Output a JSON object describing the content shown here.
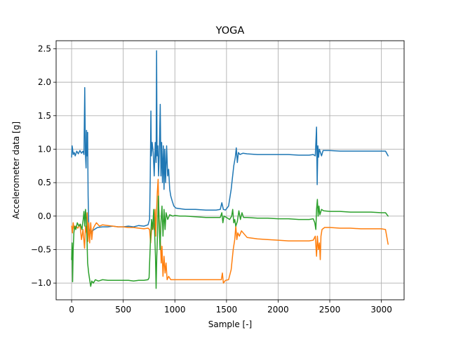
{
  "chart_data": {
    "type": "line",
    "title": "YOGA",
    "xlabel": "Sample [-]",
    "ylabel": "Accelerometer data [g]",
    "xlim": [
      -150,
      3220
    ],
    "ylim": [
      -1.25,
      2.62
    ],
    "xticks": [
      0,
      500,
      1000,
      1500,
      2000,
      2500,
      3000
    ],
    "yticks": [
      -1.0,
      -0.5,
      0.0,
      0.5,
      1.0,
      1.5,
      2.0,
      2.5
    ],
    "grid": true,
    "series": [
      {
        "color": "#1f77b4",
        "points": [
          [
            0,
            0.88
          ],
          [
            5,
            1.05
          ],
          [
            10,
            1.0
          ],
          [
            15,
            0.92
          ],
          [
            25,
            0.95
          ],
          [
            35,
            0.9
          ],
          [
            50,
            0.97
          ],
          [
            65,
            0.93
          ],
          [
            80,
            0.98
          ],
          [
            95,
            0.94
          ],
          [
            110,
            0.97
          ],
          [
            120,
            0.92
          ],
          [
            127,
            1.92
          ],
          [
            133,
            0.95
          ],
          [
            140,
            0.72
          ],
          [
            145,
            1.28
          ],
          [
            150,
            0.9
          ],
          [
            155,
            1.25
          ],
          [
            160,
            0.3
          ],
          [
            165,
            -0.1
          ],
          [
            170,
            -0.2
          ],
          [
            185,
            -0.25
          ],
          [
            200,
            -0.22
          ],
          [
            250,
            -0.17
          ],
          [
            300,
            -0.16
          ],
          [
            350,
            -0.16
          ],
          [
            400,
            -0.15
          ],
          [
            450,
            -0.16
          ],
          [
            500,
            -0.16
          ],
          [
            550,
            -0.15
          ],
          [
            600,
            -0.16
          ],
          [
            650,
            -0.14
          ],
          [
            700,
            -0.15
          ],
          [
            740,
            -0.13
          ],
          [
            755,
            -0.05
          ],
          [
            762,
            0.6
          ],
          [
            768,
            1.57
          ],
          [
            772,
            0.9
          ],
          [
            780,
            1.1
          ],
          [
            790,
            0.95
          ],
          [
            800,
            0.6
          ],
          [
            810,
            1.1
          ],
          [
            818,
            0.8
          ],
          [
            823,
            2.47
          ],
          [
            828,
            0.9
          ],
          [
            835,
            1.05
          ],
          [
            842,
            0.6
          ],
          [
            850,
            1.0
          ],
          [
            858,
            1.67
          ],
          [
            865,
            0.6
          ],
          [
            872,
            1.1
          ],
          [
            880,
            0.5
          ],
          [
            888,
            1.05
          ],
          [
            895,
            0.4
          ],
          [
            902,
            1.0
          ],
          [
            910,
            0.5
          ],
          [
            920,
            1.05
          ],
          [
            930,
            0.6
          ],
          [
            940,
            0.7
          ],
          [
            950,
            0.4
          ],
          [
            960,
            0.3
          ],
          [
            975,
            0.22
          ],
          [
            990,
            0.15
          ],
          [
            1010,
            0.12
          ],
          [
            1050,
            0.11
          ],
          [
            1100,
            0.1
          ],
          [
            1200,
            0.1
          ],
          [
            1300,
            0.09
          ],
          [
            1400,
            0.09
          ],
          [
            1440,
            0.1
          ],
          [
            1455,
            0.2
          ],
          [
            1470,
            0.1
          ],
          [
            1490,
            0.09
          ],
          [
            1520,
            0.15
          ],
          [
            1545,
            0.4
          ],
          [
            1570,
            0.75
          ],
          [
            1585,
            0.88
          ],
          [
            1595,
            1.02
          ],
          [
            1605,
            0.8
          ],
          [
            1615,
            0.95
          ],
          [
            1630,
            0.92
          ],
          [
            1660,
            0.94
          ],
          [
            1700,
            0.93
          ],
          [
            1800,
            0.92
          ],
          [
            1900,
            0.92
          ],
          [
            2000,
            0.92
          ],
          [
            2100,
            0.92
          ],
          [
            2200,
            0.91
          ],
          [
            2300,
            0.91
          ],
          [
            2340,
            0.92
          ],
          [
            2360,
            0.9
          ],
          [
            2372,
            1.33
          ],
          [
            2378,
            0.47
          ],
          [
            2385,
            1.05
          ],
          [
            2392,
            0.88
          ],
          [
            2400,
            1.0
          ],
          [
            2410,
            0.95
          ],
          [
            2420,
            0.9
          ],
          [
            2435,
            0.98
          ],
          [
            2500,
            0.98
          ],
          [
            2600,
            0.97
          ],
          [
            2700,
            0.97
          ],
          [
            2800,
            0.97
          ],
          [
            2900,
            0.97
          ],
          [
            3000,
            0.97
          ],
          [
            3040,
            0.97
          ],
          [
            3065,
            0.9
          ]
        ]
      },
      {
        "color": "#ff7f0e",
        "points": [
          [
            0,
            -0.15
          ],
          [
            8,
            -0.25
          ],
          [
            15,
            -0.1
          ],
          [
            25,
            -0.2
          ],
          [
            40,
            -0.15
          ],
          [
            60,
            -0.18
          ],
          [
            80,
            -0.12
          ],
          [
            95,
            -0.35
          ],
          [
            110,
            -0.2
          ],
          [
            125,
            -0.48
          ],
          [
            135,
            -0.15
          ],
          [
            145,
            -0.25
          ],
          [
            150,
            0.05
          ],
          [
            158,
            -0.38
          ],
          [
            165,
            -0.1
          ],
          [
            175,
            -0.4
          ],
          [
            185,
            -0.1
          ],
          [
            195,
            -0.35
          ],
          [
            205,
            -0.2
          ],
          [
            220,
            -0.15
          ],
          [
            240,
            -0.1
          ],
          [
            270,
            -0.15
          ],
          [
            300,
            -0.13
          ],
          [
            350,
            -0.14
          ],
          [
            400,
            -0.15
          ],
          [
            450,
            -0.16
          ],
          [
            500,
            -0.16
          ],
          [
            550,
            -0.17
          ],
          [
            600,
            -0.17
          ],
          [
            650,
            -0.18
          ],
          [
            700,
            -0.19
          ],
          [
            740,
            -0.18
          ],
          [
            755,
            -0.2
          ],
          [
            765,
            -0.4
          ],
          [
            775,
            -0.2
          ],
          [
            790,
            -0.1
          ],
          [
            800,
            -0.2
          ],
          [
            808,
            0.1
          ],
          [
            815,
            -0.3
          ],
          [
            822,
            0.05
          ],
          [
            830,
            0.35
          ],
          [
            838,
            0.55
          ],
          [
            845,
            0.1
          ],
          [
            852,
            -0.2
          ],
          [
            860,
            -0.4
          ],
          [
            868,
            -0.7
          ],
          [
            875,
            -0.45
          ],
          [
            885,
            -0.9
          ],
          [
            895,
            -0.6
          ],
          [
            905,
            -0.85
          ],
          [
            915,
            -0.7
          ],
          [
            925,
            -0.95
          ],
          [
            940,
            -0.9
          ],
          [
            960,
            -0.95
          ],
          [
            1000,
            -0.95
          ],
          [
            1100,
            -0.95
          ],
          [
            1200,
            -0.95
          ],
          [
            1300,
            -0.95
          ],
          [
            1400,
            -0.95
          ],
          [
            1450,
            -0.95
          ],
          [
            1460,
            -0.85
          ],
          [
            1470,
            -1.0
          ],
          [
            1490,
            -0.96
          ],
          [
            1520,
            -0.95
          ],
          [
            1545,
            -0.8
          ],
          [
            1565,
            -0.5
          ],
          [
            1580,
            -0.35
          ],
          [
            1590,
            -0.15
          ],
          [
            1600,
            -0.35
          ],
          [
            1610,
            -0.25
          ],
          [
            1625,
            -0.3
          ],
          [
            1645,
            -0.22
          ],
          [
            1700,
            -0.32
          ],
          [
            1800,
            -0.34
          ],
          [
            1900,
            -0.35
          ],
          [
            2000,
            -0.36
          ],
          [
            2100,
            -0.37
          ],
          [
            2200,
            -0.37
          ],
          [
            2300,
            -0.37
          ],
          [
            2340,
            -0.36
          ],
          [
            2360,
            -0.3
          ],
          [
            2372,
            -0.6
          ],
          [
            2380,
            -0.3
          ],
          [
            2390,
            -0.5
          ],
          [
            2400,
            -0.4
          ],
          [
            2408,
            -0.65
          ],
          [
            2415,
            -0.3
          ],
          [
            2425,
            -0.2
          ],
          [
            2450,
            -0.17
          ],
          [
            2500,
            -0.17
          ],
          [
            2600,
            -0.18
          ],
          [
            2700,
            -0.18
          ],
          [
            2800,
            -0.19
          ],
          [
            2900,
            -0.19
          ],
          [
            3000,
            -0.19
          ],
          [
            3040,
            -0.2
          ],
          [
            3065,
            -0.42
          ]
        ]
      },
      {
        "color": "#2ca02c",
        "points": [
          [
            0,
            -0.65
          ],
          [
            5,
            -0.4
          ],
          [
            10,
            -0.98
          ],
          [
            15,
            -0.5
          ],
          [
            22,
            -0.25
          ],
          [
            30,
            -0.15
          ],
          [
            40,
            -0.2
          ],
          [
            55,
            -0.1
          ],
          [
            70,
            -0.15
          ],
          [
            85,
            -0.12
          ],
          [
            100,
            -0.2
          ],
          [
            112,
            -0.05
          ],
          [
            120,
            0.07
          ],
          [
            128,
            -0.15
          ],
          [
            135,
            0.1
          ],
          [
            142,
            -0.05
          ],
          [
            148,
            -0.3
          ],
          [
            155,
            -0.7
          ],
          [
            165,
            -0.85
          ],
          [
            175,
            -0.95
          ],
          [
            185,
            -1.05
          ],
          [
            195,
            -0.97
          ],
          [
            210,
            -1.0
          ],
          [
            230,
            -0.95
          ],
          [
            260,
            -0.97
          ],
          [
            300,
            -0.95
          ],
          [
            350,
            -0.96
          ],
          [
            400,
            -0.96
          ],
          [
            450,
            -0.96
          ],
          [
            500,
            -0.96
          ],
          [
            550,
            -0.96
          ],
          [
            600,
            -0.97
          ],
          [
            650,
            -0.96
          ],
          [
            700,
            -0.96
          ],
          [
            740,
            -0.95
          ],
          [
            750,
            -0.92
          ],
          [
            758,
            -0.6
          ],
          [
            765,
            -0.3
          ],
          [
            775,
            -0.05
          ],
          [
            785,
            -0.2
          ],
          [
            795,
            0.1
          ],
          [
            805,
            -0.3
          ],
          [
            812,
            -0.6
          ],
          [
            818,
            -1.08
          ],
          [
            825,
            -0.6
          ],
          [
            833,
            -0.2
          ],
          [
            840,
            0.3
          ],
          [
            848,
            -0.1
          ],
          [
            856,
            -0.5
          ],
          [
            865,
            -0.1
          ],
          [
            875,
            0.15
          ],
          [
            885,
            -0.3
          ],
          [
            895,
            0.1
          ],
          [
            905,
            -0.2
          ],
          [
            915,
            0.05
          ],
          [
            930,
            -0.05
          ],
          [
            950,
            0.02
          ],
          [
            980,
            0.0
          ],
          [
            1000,
            0.01
          ],
          [
            1050,
            0.0
          ],
          [
            1100,
            0.0
          ],
          [
            1200,
            -0.01
          ],
          [
            1300,
            -0.02
          ],
          [
            1400,
            -0.02
          ],
          [
            1440,
            -0.02
          ],
          [
            1455,
            0.05
          ],
          [
            1465,
            -0.1
          ],
          [
            1475,
            0.0
          ],
          [
            1500,
            -0.02
          ],
          [
            1530,
            -0.05
          ],
          [
            1550,
            0.0
          ],
          [
            1560,
            0.1
          ],
          [
            1570,
            -0.1
          ],
          [
            1580,
            -0.05
          ],
          [
            1590,
            -0.15
          ],
          [
            1605,
            -0.08
          ],
          [
            1620,
            0.08
          ],
          [
            1635,
            -0.05
          ],
          [
            1650,
            0.05
          ],
          [
            1665,
            -0.02
          ],
          [
            1700,
            -0.02
          ],
          [
            1800,
            -0.03
          ],
          [
            1900,
            -0.03
          ],
          [
            2000,
            -0.04
          ],
          [
            2100,
            -0.04
          ],
          [
            2200,
            -0.05
          ],
          [
            2300,
            -0.05
          ],
          [
            2340,
            -0.04
          ],
          [
            2355,
            -0.1
          ],
          [
            2365,
            -0.2
          ],
          [
            2372,
            0.1
          ],
          [
            2380,
            0.25
          ],
          [
            2388,
            0.0
          ],
          [
            2395,
            0.15
          ],
          [
            2405,
            0.02
          ],
          [
            2420,
            0.1
          ],
          [
            2440,
            0.08
          ],
          [
            2500,
            0.07
          ],
          [
            2600,
            0.07
          ],
          [
            2700,
            0.06
          ],
          [
            2800,
            0.06
          ],
          [
            2900,
            0.06
          ],
          [
            3000,
            0.05
          ],
          [
            3040,
            0.05
          ],
          [
            3065,
            0.0
          ]
        ]
      }
    ]
  }
}
